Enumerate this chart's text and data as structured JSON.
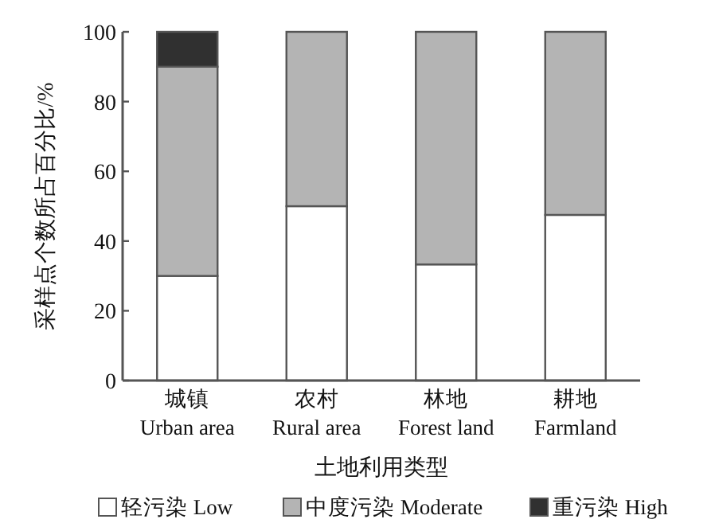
{
  "chart_data": {
    "type": "bar",
    "stacked": true,
    "xlabel": "土地利用类型",
    "ylabel": "采样点个数所占百分比/%",
    "categories": [
      "城镇 Urban area",
      "农村 Rural area",
      "林地 Forest land",
      "耕地 Farmland"
    ],
    "series": [
      {
        "name": "轻污染 Low",
        "color": "#ffffff",
        "values": [
          30,
          50,
          33.3,
          47.5
        ]
      },
      {
        "name": "中度污染 Moderate",
        "color": "#b4b4b4",
        "values": [
          60,
          50,
          66.7,
          52.5
        ]
      },
      {
        "name": "重污染 High",
        "color": "#303030",
        "values": [
          10,
          null,
          null,
          null
        ]
      }
    ],
    "ylim": [
      0,
      100
    ],
    "yticks": [
      0,
      20,
      40,
      60,
      80,
      100
    ],
    "legend": "bottom"
  }
}
